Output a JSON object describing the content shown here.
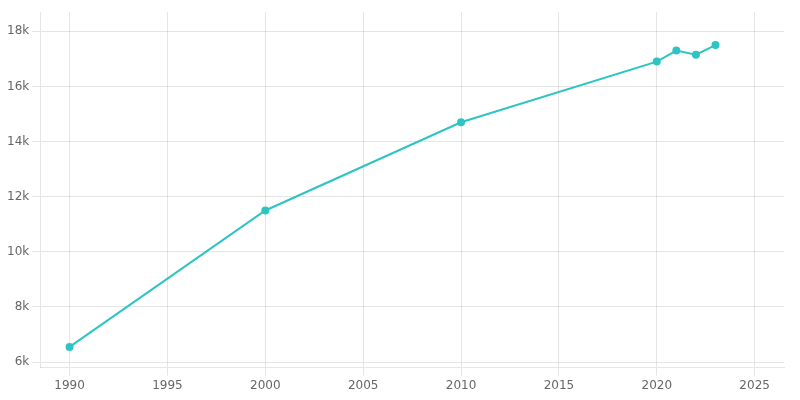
{
  "chart_data": {
    "type": "line",
    "x": [
      1990,
      2000,
      2010,
      2020,
      2021,
      2022,
      2023
    ],
    "values": [
      6550,
      11500,
      14700,
      16900,
      17300,
      17150,
      17500
    ],
    "color": "#2ec4c4",
    "marker": "o",
    "xlim": [
      1988.5,
      2026.5
    ],
    "ylim": [
      5800,
      18700
    ],
    "xticks": [
      1990,
      1995,
      2000,
      2005,
      2010,
      2015,
      2020,
      2025
    ],
    "yticks": [
      {
        "value": 6000,
        "label": "6k"
      },
      {
        "value": 8000,
        "label": "8k"
      },
      {
        "value": 10000,
        "label": "10k"
      },
      {
        "value": 12000,
        "label": "12k"
      },
      {
        "value": 14000,
        "label": "14k"
      },
      {
        "value": 16000,
        "label": "16k"
      },
      {
        "value": 18000,
        "label": "18k"
      }
    ],
    "grid": true
  }
}
